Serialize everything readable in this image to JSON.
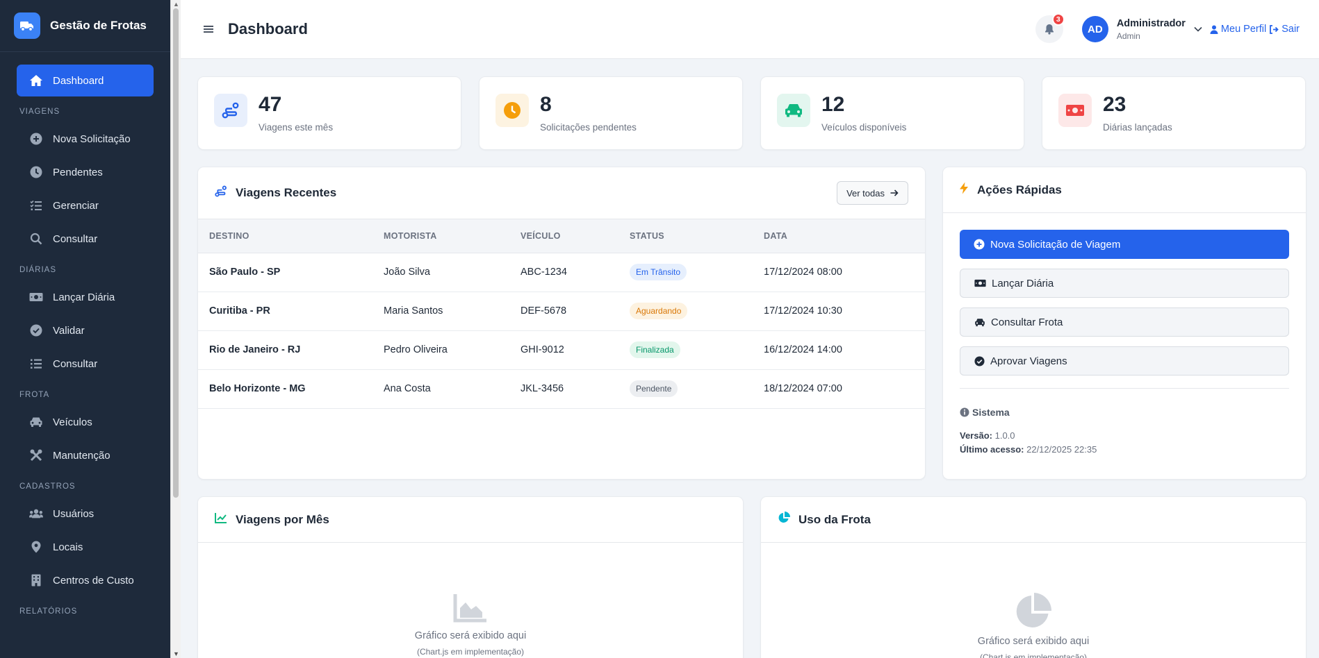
{
  "sidebar": {
    "brand": "Gestão de Frotas",
    "active": "Dashboard",
    "viagens_section": "VIAGENS",
    "viagens": [
      "Nova Solicitação",
      "Pendentes",
      "Gerenciar",
      "Consultar"
    ],
    "diarias_section": "DIÁRIAS",
    "diarias": [
      "Lançar Diária",
      "Validar",
      "Consultar"
    ],
    "frota_section": "FROTA",
    "frota": [
      "Veículos",
      "Manutenção"
    ],
    "cadastros_section": "CADASTROS",
    "cadastros": [
      "Usuários",
      "Locais",
      "Centros de Custo"
    ],
    "relatorios_section": "RELATÓRIOS"
  },
  "header": {
    "title": "Dashboard",
    "notifications": "3",
    "avatar_initials": "AD",
    "user_name": "Administrador",
    "user_role": "Admin",
    "profile_link": "Meu Perfil",
    "logout_link": "Sair"
  },
  "stats": [
    {
      "value": "47",
      "label": "Viagens este mês",
      "icon": "route-icon",
      "color": "#2563eb",
      "bg": "#e8effc"
    },
    {
      "value": "8",
      "label": "Solicitações pendentes",
      "icon": "clock-icon",
      "color": "#f59e0b",
      "bg": "#fdf3e1"
    },
    {
      "value": "12",
      "label": "Veículos disponíveis",
      "icon": "car-icon",
      "color": "#10b981",
      "bg": "#e3f6ef"
    },
    {
      "value": "23",
      "label": "Diárias lançadas",
      "icon": "money-icon",
      "color": "#ef4444",
      "bg": "#fde8e8"
    }
  ],
  "recent": {
    "title": "Viagens Recentes",
    "view_all": "Ver todas",
    "columns": [
      "DESTINO",
      "MOTORISTA",
      "VEÍCULO",
      "STATUS",
      "DATA"
    ],
    "rows": [
      {
        "destino": "São Paulo - SP",
        "motorista": "João Silva",
        "veiculo": "ABC-1234",
        "status": "Em Trânsito",
        "data": "17/12/2024 08:00",
        "status_color": "#2563eb",
        "status_bg": "#e6effd"
      },
      {
        "destino": "Curitiba - PR",
        "motorista": "Maria Santos",
        "veiculo": "DEF-5678",
        "status": "Aguardando",
        "data": "17/12/2024 10:30",
        "status_color": "#d97706",
        "status_bg": "#fdf2e0"
      },
      {
        "destino": "Rio de Janeiro - RJ",
        "motorista": "Pedro Oliveira",
        "veiculo": "GHI-9012",
        "status": "Finalizada",
        "data": "16/12/2024 14:00",
        "status_color": "#059669",
        "status_bg": "#e2f6ec"
      },
      {
        "destino": "Belo Horizonte - MG",
        "motorista": "Ana Costa",
        "veiculo": "JKL-3456",
        "status": "Pendente",
        "data": "18/12/2024 07:00",
        "status_color": "#4b5563",
        "status_bg": "#eceef1"
      }
    ]
  },
  "quick": {
    "title": "Ações Rápidas",
    "primary": "Nova Solicitação de Viagem",
    "actions": [
      "Lançar Diária",
      "Consultar Frota",
      "Aprovar Viagens"
    ],
    "system_title": "Sistema",
    "version_label": "Versão:",
    "version": "1.0.0",
    "last_access_label": "Último acesso:",
    "last_access": "22/12/2025 22:35"
  },
  "charts": {
    "trips_title": "Viagens por Mês",
    "fleet_title": "Uso da Frota",
    "placeholder": "Gráfico será exibido aqui",
    "placeholder_sub": "(Chart.js em implementação)"
  }
}
